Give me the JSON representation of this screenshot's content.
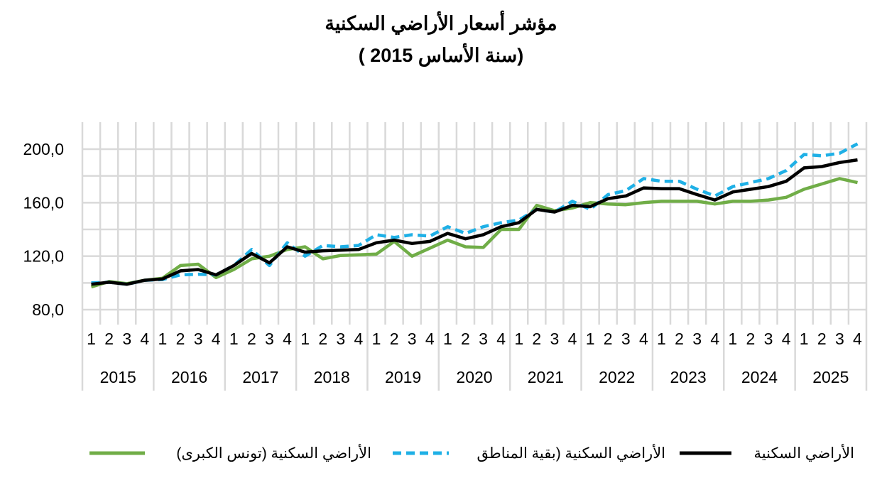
{
  "chart_data": {
    "type": "line",
    "title": "مؤشر أسعار الأراضي السكنية",
    "subtitle": "(سنة الأساس 2015 )",
    "xlabel": "",
    "ylabel": "",
    "ylim": [
      80,
      200
    ],
    "y_ticks": [
      "80,0",
      "120,0",
      "160,0",
      "200,0"
    ],
    "years": [
      "2015",
      "2016",
      "2017",
      "2018",
      "2019",
      "2020",
      "2021",
      "2022",
      "2023",
      "2024",
      "2025"
    ],
    "quarters": [
      "1",
      "2",
      "3",
      "4"
    ],
    "grid": true,
    "legend_position": "bottom",
    "series": [
      {
        "name": "الأراضي السكنية",
        "color": "#000000",
        "style": "solid",
        "values": [
          99,
          100.5,
          99,
          102,
          103,
          109,
          110,
          106,
          113,
          122,
          115,
          127,
          123,
          124,
          124.5,
          125,
          130,
          132,
          129.5,
          131,
          137,
          133,
          136,
          142,
          145,
          155,
          153,
          158,
          157,
          163,
          165,
          171,
          170.5,
          170.5,
          166,
          162,
          168,
          170,
          172,
          176,
          186,
          187,
          190,
          192
        ]
      },
      {
        "name": "الأراضي السكنية (بقية المناطق",
        "color": "#1fb0e6",
        "style": "dashed",
        "values": [
          100,
          100.5,
          99,
          102,
          102.5,
          106,
          106.5,
          106,
          113,
          125,
          113,
          130,
          120,
          128,
          127,
          128,
          136,
          134,
          136,
          135,
          142,
          137,
          142,
          145,
          147,
          155,
          153,
          161,
          155,
          166,
          169,
          178,
          176,
          176,
          170,
          165,
          172,
          175,
          178,
          184,
          196,
          195,
          197,
          204
        ]
      },
      {
        "name": "الأراضي السكنية  (تونس الكبرى)",
        "color": "#70ad47",
        "style": "solid",
        "values": [
          97,
          101,
          99.5,
          102,
          103.5,
          113,
          114,
          104,
          110,
          118,
          120,
          125,
          127,
          118,
          120.5,
          121,
          121.5,
          131,
          120,
          126,
          132,
          127,
          126.5,
          140,
          140,
          158,
          154,
          156,
          160,
          159,
          158.5,
          160,
          161,
          161,
          161,
          159,
          161,
          161,
          162,
          164,
          170,
          174,
          178,
          175
        ]
      }
    ]
  }
}
